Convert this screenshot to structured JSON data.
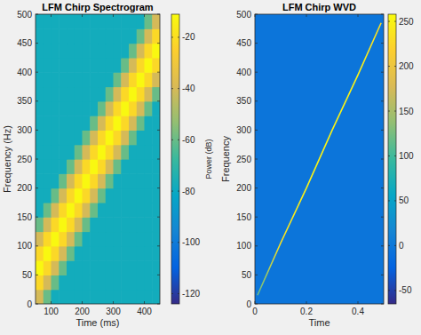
{
  "chart_data": [
    {
      "type": "heatmap",
      "title": "LFM Chirp Spectrogram",
      "x_label": "Time (ms)",
      "y_label": "Frequency (Hz)",
      "x": [
        62.5,
        87.5,
        112.5,
        137.5,
        162.5,
        187.5,
        212.5,
        237.5,
        262.5,
        287.5,
        312.5,
        337.5,
        362.5,
        387.5,
        412.5,
        437.5
      ],
      "y": [
        12.5,
        37.5,
        62.5,
        87.5,
        112.5,
        137.5,
        162.5,
        187.5,
        212.5,
        237.5,
        262.5,
        287.5,
        312.5,
        337.5,
        362.5,
        387.5,
        412.5,
        437.5,
        462.5,
        487.5
      ],
      "z": [
        [
          -40,
          -60,
          -78,
          -78,
          -78,
          -78,
          -78,
          -78,
          -78,
          -78,
          -78,
          -78,
          -78,
          -78,
          -78,
          -78
        ],
        [
          -22,
          -40,
          -60,
          -78,
          -78,
          -78,
          -78,
          -78,
          -78,
          -78,
          -78,
          -78,
          -78,
          -78,
          -78,
          -78
        ],
        [
          -12,
          -22,
          -40,
          -60,
          -78,
          -78,
          -78,
          -78,
          -78,
          -78,
          -78,
          -78,
          -78,
          -78,
          -78,
          -78
        ],
        [
          -22,
          -12,
          -22,
          -40,
          -60,
          -78,
          -78,
          -78,
          -78,
          -78,
          -78,
          -78,
          -78,
          -78,
          -78,
          -78
        ],
        [
          -40,
          -22,
          -12,
          -22,
          -40,
          -60,
          -78,
          -78,
          -78,
          -78,
          -78,
          -78,
          -78,
          -78,
          -78,
          -78
        ],
        [
          -60,
          -40,
          -22,
          -12,
          -22,
          -40,
          -60,
          -78,
          -78,
          -78,
          -78,
          -78,
          -78,
          -78,
          -78,
          -78
        ],
        [
          -78,
          -60,
          -40,
          -22,
          -12,
          -22,
          -40,
          -60,
          -78,
          -78,
          -78,
          -78,
          -78,
          -78,
          -78,
          -78
        ],
        [
          -78,
          -78,
          -60,
          -40,
          -22,
          -12,
          -22,
          -40,
          -60,
          -78,
          -78,
          -78,
          -78,
          -78,
          -78,
          -78
        ],
        [
          -78,
          -78,
          -78,
          -60,
          -40,
          -22,
          -12,
          -22,
          -40,
          -60,
          -78,
          -78,
          -78,
          -78,
          -78,
          -78
        ],
        [
          -78,
          -78,
          -78,
          -78,
          -60,
          -40,
          -22,
          -12,
          -22,
          -40,
          -60,
          -78,
          -78,
          -78,
          -78,
          -78
        ],
        [
          -78,
          -78,
          -78,
          -78,
          -78,
          -60,
          -40,
          -22,
          -12,
          -22,
          -40,
          -60,
          -78,
          -78,
          -78,
          -78
        ],
        [
          -78,
          -78,
          -78,
          -78,
          -78,
          -78,
          -60,
          -40,
          -22,
          -12,
          -22,
          -40,
          -60,
          -78,
          -78,
          -78
        ],
        [
          -78,
          -78,
          -78,
          -78,
          -78,
          -78,
          -78,
          -60,
          -40,
          -22,
          -12,
          -22,
          -40,
          -60,
          -78,
          -78
        ],
        [
          -78,
          -78,
          -78,
          -78,
          -78,
          -78,
          -78,
          -78,
          -60,
          -40,
          -22,
          -12,
          -22,
          -40,
          -60,
          -78
        ],
        [
          -78,
          -78,
          -78,
          -78,
          -78,
          -78,
          -78,
          -78,
          -78,
          -60,
          -40,
          -22,
          -12,
          -22,
          -40,
          -60
        ],
        [
          -78,
          -78,
          -78,
          -78,
          -78,
          -78,
          -78,
          -78,
          -78,
          -78,
          -60,
          -40,
          -22,
          -12,
          -22,
          -40
        ],
        [
          -78,
          -78,
          -78,
          -78,
          -78,
          -78,
          -78,
          -78,
          -78,
          -78,
          -78,
          -60,
          -40,
          -22,
          -12,
          -22
        ],
        [
          -78,
          -78,
          -78,
          -78,
          -78,
          -78,
          -78,
          -78,
          -78,
          -78,
          -78,
          -78,
          -60,
          -40,
          -22,
          -12
        ],
        [
          -78,
          -78,
          -78,
          -78,
          -78,
          -78,
          -78,
          -78,
          -78,
          -78,
          -78,
          -78,
          -78,
          -60,
          -40,
          -22
        ],
        [
          -78,
          -78,
          -78,
          -78,
          -78,
          -78,
          -78,
          -78,
          -78,
          -78,
          -78,
          -78,
          -78,
          -78,
          -60,
          -40
        ]
      ],
      "xlim": [
        50,
        450
      ],
      "ylim": [
        0,
        500
      ],
      "xticks": [
        100,
        200,
        300,
        400
      ],
      "yticks": [
        0,
        50,
        100,
        150,
        200,
        250,
        300,
        350,
        400,
        450,
        500
      ],
      "clim": [
        -124,
        -11
      ],
      "cticks": [
        -120,
        -100,
        -80,
        -60,
        -40,
        -20
      ],
      "colorbar_label": "Power (dB)"
    },
    {
      "type": "ridge",
      "title": "LFM Chirp WVD",
      "x_label": "Time",
      "y_label": "Frequency",
      "background": -3,
      "ridge": {
        "x": [
          0.01,
          0.1,
          0.2,
          0.3,
          0.4,
          0.49
        ],
        "y": [
          15,
          105,
          200,
          300,
          395,
          485
        ],
        "values": [
          120,
          235,
          250,
          250,
          250,
          230
        ]
      },
      "xlim": [
        0,
        0.5
      ],
      "ylim": [
        0,
        500
      ],
      "xticks": [
        0,
        0.2,
        0.4
      ],
      "yticks": [
        0,
        50,
        100,
        150,
        200,
        250,
        300,
        350,
        400,
        450,
        500
      ],
      "clim": [
        -65,
        258
      ],
      "cticks": [
        -50,
        0,
        50,
        100,
        150,
        200,
        250
      ]
    }
  ]
}
